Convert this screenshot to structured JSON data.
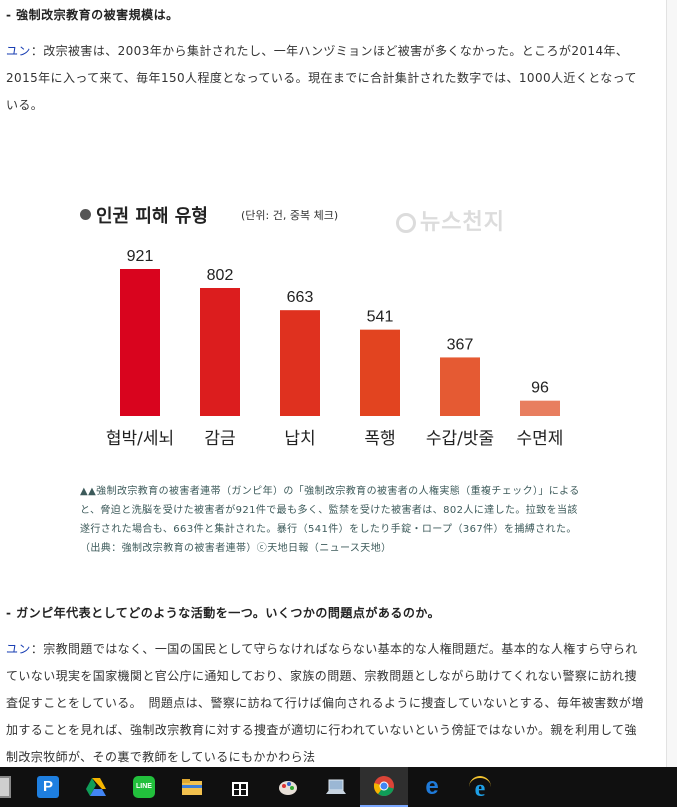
{
  "article": {
    "q1": "- 強制改宗教育の被害規模は。",
    "a1_speaker": "ユン",
    "a1_text": "：改宗被害は、2003年から集計されたし、一年ハンヅミョンほど被害が多くなかった。ところが2014年、2015年に入って来て、毎年150人程度となっている。現在までに合計集計された数字では、1000人近くとなっている。",
    "q2": "- ガンピ年代表としてどのような活動を一つ。いくつかの問題点があるのか。",
    "a2_speaker": "ユン",
    "a2_text": "：宗教問題ではなく、一国の国民として守らなければならない基本的な人権問題だ。基本的な人権すら守られていない現実を国家機関と官公庁に通知しており、家族の問題、宗教問題としながら助けてくれない警察に訪れ捜査促すことをしている。　問題点は、警察に訪ねて行けば偏向されるように捜査していないとする、毎年被害数が増加することを見れば、強制改宗教育に対する捜査が適切に行われていないという傍証ではないか。親を利用して強制改宗牧師が、その裏で教師をしているにもかかわら法"
  },
  "chart_data": {
    "type": "bar",
    "title": "인권 피해 유형",
    "unit_note": "(단위: 건, 중복 체크)",
    "categories": [
      "협박/세뇌",
      "감금",
      "납치",
      "폭행",
      "수갑/밧줄",
      "수면제"
    ],
    "values": [
      921,
      802,
      663,
      541,
      367,
      96
    ],
    "ylim": [
      0,
      921
    ],
    "colors": [
      "#d9041e",
      "#dc1d1e",
      "#df311f",
      "#e24420",
      "#e55a33",
      "#e87e5f"
    ],
    "watermark": "뉴스천지",
    "grid": false,
    "legend": "none"
  },
  "caption": "▲▲強制改宗教育の被害者連帯（ガンピ年）の「強制改宗教育の被害者の人権実態（重複チェック）」によると、脅迫と洗脳を受けた被害者が921件で最も多く、監禁を受けた被害者は、802人に達した。拉致を当該遂行された場合も、663件と集計された。暴行（541件）をしたり手錠・ロープ（367件）を捕縛された。（出典：強制改宗教育の被害者連帯）ⓒ天地日報（ニュース天地）",
  "taskbar": {
    "apps": [
      {
        "name": "calculator-icon",
        "color": "#cfcfcf"
      },
      {
        "name": "pdf-app-icon",
        "color": "#1e7fe0"
      },
      {
        "name": "google-drive-icon",
        "color": "#f4b400"
      },
      {
        "name": "line-messenger-icon",
        "color": "#22c03c"
      },
      {
        "name": "file-explorer-icon",
        "color": "#f2c14e"
      },
      {
        "name": "windows-store-icon",
        "color": "#ffffff"
      },
      {
        "name": "paint-icon",
        "color": "#e8e0d8"
      },
      {
        "name": "laptop-app-icon",
        "color": "#9bb7d4"
      },
      {
        "name": "chrome-icon",
        "color": "#db4437"
      },
      {
        "name": "edge-icon",
        "color": "#1f7ad9"
      },
      {
        "name": "internet-explorer-icon",
        "color": "#1ea0e6"
      }
    ]
  }
}
